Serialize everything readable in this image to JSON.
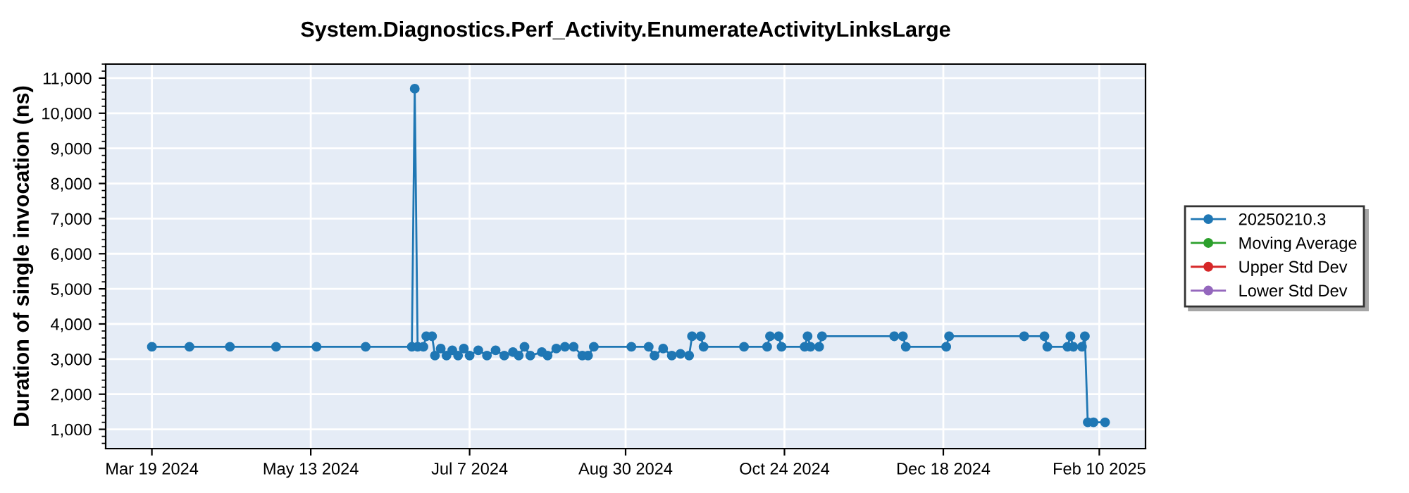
{
  "chart_data": {
    "type": "line",
    "title": "System.Diagnostics.Perf_Activity.EnumerateActivityLinksLarge",
    "ylabel": "Duration of single invocation (ns)",
    "xlim": [
      "2024-03-03",
      "2025-02-26"
    ],
    "xticks": [
      {
        "value": "2024-03-19",
        "label": "Mar 19 2024"
      },
      {
        "value": "2024-05-13",
        "label": "May 13 2024"
      },
      {
        "value": "2024-07-07",
        "label": "Jul 7 2024"
      },
      {
        "value": "2024-08-30",
        "label": "Aug 30 2024"
      },
      {
        "value": "2024-10-24",
        "label": "Oct 24 2024"
      },
      {
        "value": "2024-12-18",
        "label": "Dec 18 2024"
      },
      {
        "value": "2025-02-10",
        "label": "Feb 10 2025"
      }
    ],
    "ylim": [
      450,
      11400
    ],
    "yticks": [
      {
        "value": 1000,
        "label": "1,000"
      },
      {
        "value": 2000,
        "label": "2,000"
      },
      {
        "value": 3000,
        "label": "3,000"
      },
      {
        "value": 4000,
        "label": "4,000"
      },
      {
        "value": 5000,
        "label": "5,000"
      },
      {
        "value": 6000,
        "label": "6,000"
      },
      {
        "value": 7000,
        "label": "7,000"
      },
      {
        "value": 8000,
        "label": "8,000"
      },
      {
        "value": 9000,
        "label": "9,000"
      },
      {
        "value": 10000,
        "label": "10,000"
      },
      {
        "value": 11000,
        "label": "11,000"
      }
    ],
    "grid": true,
    "legend": "right",
    "marker": "circle",
    "line_style": "solid",
    "series": [
      {
        "name": "20250210.3",
        "color": "#1f77b4",
        "x": [
          "2024-03-19",
          "2024-04-01",
          "2024-04-15",
          "2024-05-01",
          "2024-05-15",
          "2024-06-01",
          "2024-06-17",
          "2024-06-18",
          "2024-06-19",
          "2024-06-21",
          "2024-06-22",
          "2024-06-24",
          "2024-06-25",
          "2024-06-27",
          "2024-06-29",
          "2024-07-01",
          "2024-07-03",
          "2024-07-05",
          "2024-07-07",
          "2024-07-10",
          "2024-07-13",
          "2024-07-16",
          "2024-07-19",
          "2024-07-22",
          "2024-07-24",
          "2024-07-26",
          "2024-07-28",
          "2024-08-01",
          "2024-08-03",
          "2024-08-06",
          "2024-08-09",
          "2024-08-12",
          "2024-08-15",
          "2024-08-17",
          "2024-08-19",
          "2024-09-01",
          "2024-09-07",
          "2024-09-09",
          "2024-09-12",
          "2024-09-15",
          "2024-09-18",
          "2024-09-21",
          "2024-09-22",
          "2024-09-25",
          "2024-09-26",
          "2024-10-10",
          "2024-10-18",
          "2024-10-19",
          "2024-10-22",
          "2024-10-23",
          "2024-10-31",
          "2024-11-01",
          "2024-11-02",
          "2024-11-05",
          "2024-11-06",
          "2024-12-01",
          "2024-12-04",
          "2024-12-05",
          "2024-12-19",
          "2024-12-20",
          "2025-01-15",
          "2025-01-22",
          "2025-01-23",
          "2025-01-30",
          "2025-01-31",
          "2025-02-01",
          "2025-02-04",
          "2025-02-05",
          "2025-02-06",
          "2025-02-08",
          "2025-02-12"
        ],
        "values": [
          3350,
          3350,
          3350,
          3350,
          3350,
          3350,
          3350,
          10700,
          3350,
          3350,
          3650,
          3650,
          3100,
          3300,
          3100,
          3250,
          3100,
          3300,
          3100,
          3250,
          3100,
          3250,
          3100,
          3200,
          3100,
          3350,
          3100,
          3200,
          3100,
          3300,
          3350,
          3350,
          3100,
          3100,
          3350,
          3350,
          3350,
          3100,
          3300,
          3100,
          3150,
          3100,
          3650,
          3650,
          3350,
          3350,
          3350,
          3650,
          3650,
          3350,
          3350,
          3650,
          3350,
          3350,
          3650,
          3650,
          3650,
          3350,
          3350,
          3650,
          3650,
          3650,
          3350,
          3350,
          3650,
          3350,
          3350,
          3650,
          1200,
          1200,
          1200
        ]
      },
      {
        "name": "Moving Average",
        "color": "#2ca02c"
      },
      {
        "name": "Upper Std Dev",
        "color": "#d62728"
      },
      {
        "name": "Lower Std Dev",
        "color": "#9467bd"
      }
    ]
  }
}
